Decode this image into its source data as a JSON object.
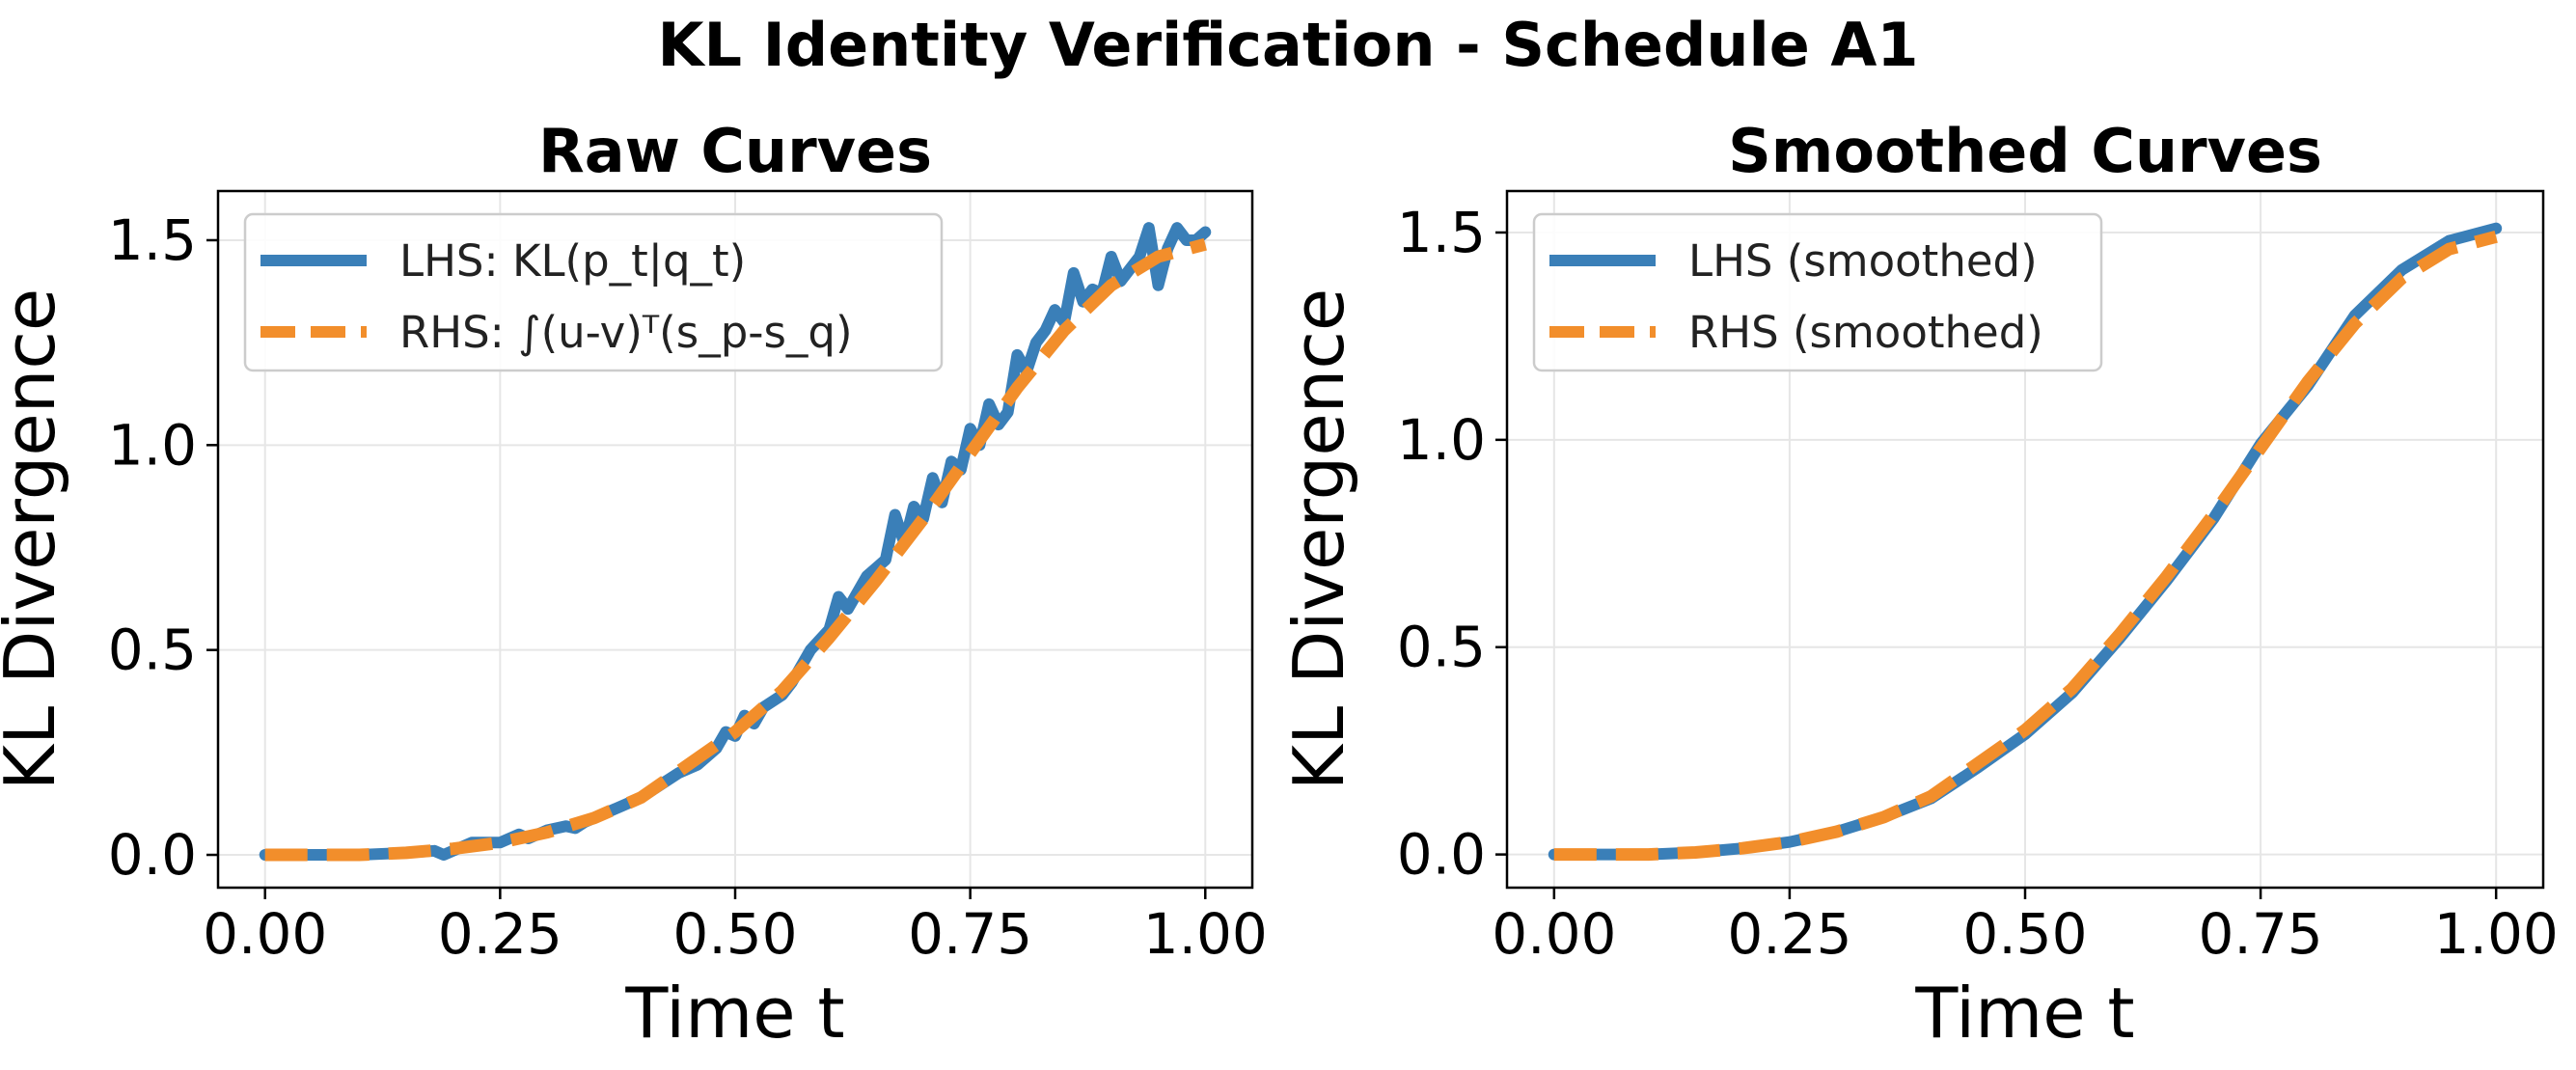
{
  "figure": {
    "title": "KL Identity Verification - Schedule A1"
  },
  "colors": {
    "lhs": "#3a7fb8",
    "rhs": "#f28e2b",
    "grid": "#e6e6e6",
    "legend_border": "#cccccc"
  },
  "chart_data": [
    {
      "type": "line",
      "title": "Raw Curves",
      "xlabel": "Time t",
      "ylabel": "KL Divergence",
      "xlim": [
        -0.05,
        1.05
      ],
      "ylim": [
        -0.08,
        1.62
      ],
      "xticks": [
        0.0,
        0.25,
        0.5,
        0.75,
        1.0
      ],
      "xtick_labels": [
        "0.00",
        "0.25",
        "0.50",
        "0.75",
        "1.00"
      ],
      "yticks": [
        0.0,
        0.5,
        1.0,
        1.5
      ],
      "ytick_labels": [
        "0.0",
        "0.5",
        "1.0",
        "1.5"
      ],
      "grid": true,
      "legend_position": "upper-left",
      "series": [
        {
          "name": "LHS: KL(p_t|q_t)",
          "style": "solid",
          "x": [
            0.0,
            0.05,
            0.1,
            0.15,
            0.18,
            0.19,
            0.2,
            0.22,
            0.25,
            0.27,
            0.28,
            0.3,
            0.32,
            0.33,
            0.34,
            0.36,
            0.38,
            0.4,
            0.42,
            0.44,
            0.46,
            0.48,
            0.49,
            0.5,
            0.51,
            0.52,
            0.53,
            0.55,
            0.56,
            0.58,
            0.6,
            0.61,
            0.62,
            0.64,
            0.65,
            0.66,
            0.67,
            0.68,
            0.69,
            0.7,
            0.71,
            0.72,
            0.73,
            0.74,
            0.75,
            0.76,
            0.77,
            0.78,
            0.79,
            0.8,
            0.81,
            0.82,
            0.83,
            0.84,
            0.85,
            0.86,
            0.87,
            0.88,
            0.89,
            0.9,
            0.91,
            0.92,
            0.93,
            0.94,
            0.95,
            0.96,
            0.97,
            0.98,
            0.99,
            1.0
          ],
          "y": [
            0.0,
            0.0,
            0.0,
            0.005,
            0.01,
            0.0,
            0.01,
            0.03,
            0.03,
            0.05,
            0.04,
            0.06,
            0.07,
            0.065,
            0.08,
            0.1,
            0.12,
            0.14,
            0.17,
            0.2,
            0.22,
            0.26,
            0.3,
            0.29,
            0.34,
            0.32,
            0.36,
            0.39,
            0.42,
            0.5,
            0.55,
            0.63,
            0.6,
            0.68,
            0.7,
            0.72,
            0.83,
            0.76,
            0.85,
            0.82,
            0.92,
            0.86,
            0.96,
            0.94,
            1.04,
            1.0,
            1.1,
            1.05,
            1.08,
            1.22,
            1.18,
            1.25,
            1.28,
            1.33,
            1.3,
            1.42,
            1.35,
            1.38,
            1.37,
            1.46,
            1.4,
            1.43,
            1.46,
            1.53,
            1.39,
            1.48,
            1.53,
            1.5,
            1.5,
            1.52
          ]
        },
        {
          "name": "RHS: ∫(u-v)ᵀ(s_p-s_q)",
          "style": "dashed",
          "x": [
            0.0,
            0.05,
            0.1,
            0.15,
            0.2,
            0.25,
            0.3,
            0.35,
            0.4,
            0.45,
            0.5,
            0.55,
            0.6,
            0.65,
            0.7,
            0.75,
            0.8,
            0.85,
            0.9,
            0.95,
            1.0
          ],
          "y": [
            0.0,
            0.0,
            0.0,
            0.005,
            0.015,
            0.03,
            0.055,
            0.09,
            0.14,
            0.22,
            0.3,
            0.4,
            0.53,
            0.67,
            0.82,
            0.98,
            1.14,
            1.28,
            1.39,
            1.46,
            1.49
          ]
        }
      ]
    },
    {
      "type": "line",
      "title": "Smoothed Curves",
      "xlabel": "Time t",
      "ylabel": "KL Divergence",
      "xlim": [
        -0.05,
        1.05
      ],
      "ylim": [
        -0.08,
        1.6
      ],
      "xticks": [
        0.0,
        0.25,
        0.5,
        0.75,
        1.0
      ],
      "xtick_labels": [
        "0.00",
        "0.25",
        "0.50",
        "0.75",
        "1.00"
      ],
      "yticks": [
        0.0,
        0.5,
        1.0,
        1.5
      ],
      "ytick_labels": [
        "0.0",
        "0.5",
        "1.0",
        "1.5"
      ],
      "grid": true,
      "legend_position": "upper-left",
      "series": [
        {
          "name": "LHS (smoothed)",
          "style": "solid",
          "x": [
            0.0,
            0.05,
            0.1,
            0.15,
            0.2,
            0.25,
            0.3,
            0.35,
            0.4,
            0.45,
            0.5,
            0.55,
            0.6,
            0.65,
            0.7,
            0.75,
            0.8,
            0.85,
            0.9,
            0.95,
            1.0
          ],
          "y": [
            0.0,
            0.0,
            0.0,
            0.005,
            0.015,
            0.03,
            0.055,
            0.09,
            0.135,
            0.21,
            0.29,
            0.39,
            0.52,
            0.66,
            0.81,
            0.99,
            1.13,
            1.3,
            1.41,
            1.48,
            1.51
          ]
        },
        {
          "name": "RHS (smoothed)",
          "style": "dashed",
          "x": [
            0.0,
            0.05,
            0.1,
            0.15,
            0.2,
            0.25,
            0.3,
            0.35,
            0.4,
            0.45,
            0.5,
            0.55,
            0.6,
            0.65,
            0.7,
            0.75,
            0.8,
            0.85,
            0.9,
            0.95,
            1.0
          ],
          "y": [
            0.0,
            0.0,
            0.0,
            0.005,
            0.015,
            0.03,
            0.055,
            0.09,
            0.14,
            0.22,
            0.3,
            0.4,
            0.53,
            0.67,
            0.82,
            0.98,
            1.14,
            1.28,
            1.39,
            1.46,
            1.49
          ]
        }
      ]
    }
  ]
}
